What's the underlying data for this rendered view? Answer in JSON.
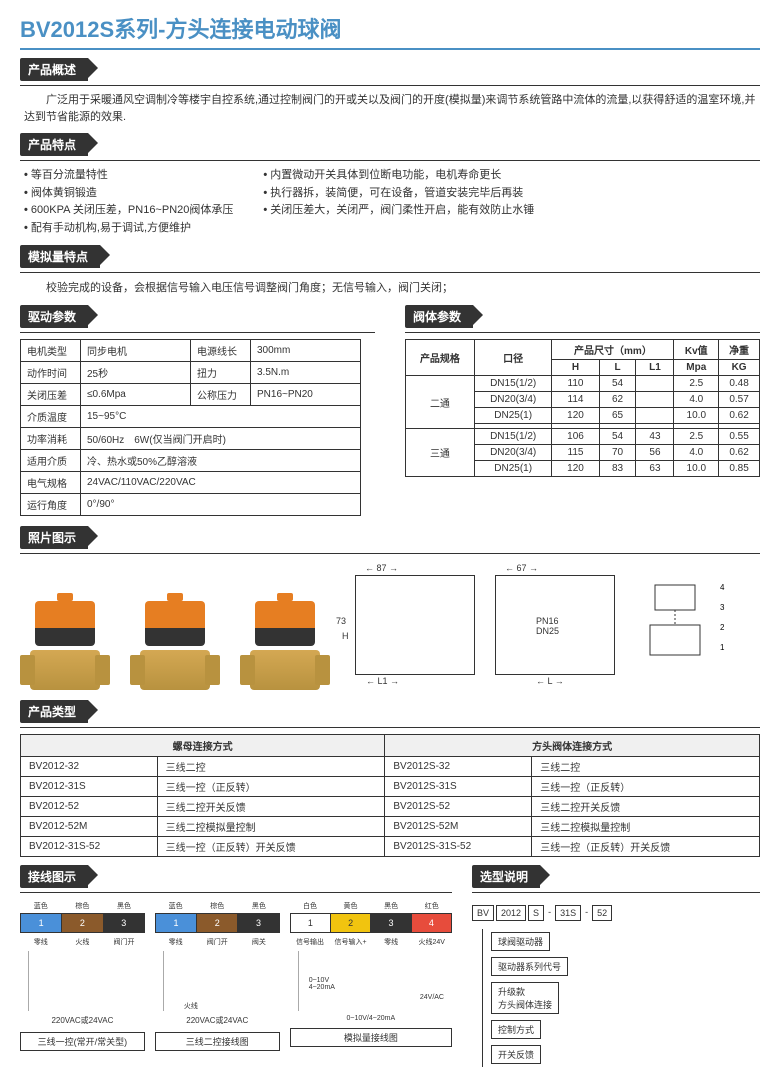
{
  "title": "BV2012S系列-方头连接电动球阀",
  "sections": {
    "overview_header": "产品概述",
    "overview_text": "广泛用于采暖通风空调制冷等楼宇自控系统,通过控制阀门的开或关以及阀门的开度(模拟量)来调节系统管路中流体的流量,以获得舒适的温室环境,并达到节省能源的效果.",
    "features_header": "产品特点",
    "features_left": [
      "等百分流量特性",
      "阀体黄铜锻造",
      "600KPA 关闭压差，PN16~PN20阀体承压",
      "配有手动机构,易于调试,方便维护"
    ],
    "features_right": [
      "内置微动开关具体到位断电功能，电机寿命更长",
      "执行器拆，装简便，可在设备，管道安装完毕后再装",
      "关闭压差大，关闭严，阀门柔性开启，能有效防止水锤"
    ],
    "analog_header": "模拟量特点",
    "analog_text": "校验完成的设备，会根据信号输入电压信号调整阀门角度；无信号输入，阀门关闭；",
    "drive_header": "驱动参数",
    "body_header": "阀体参数",
    "photo_header": "照片图示",
    "model_header": "产品类型",
    "wiring_header": "接线图示",
    "selection_header": "选型说明"
  },
  "drive_params": [
    [
      "电机类型",
      "同步电机",
      "电源线长",
      "300mm"
    ],
    [
      "动作时间",
      "25秒",
      "扭力",
      "3.5N.m"
    ],
    [
      "关闭压差",
      "≤0.6Mpa",
      "公称压力",
      "PN16~PN20"
    ],
    [
      "介质温度",
      "15~95°C",
      "",
      ""
    ],
    [
      "功率消耗",
      "50/60Hz　6W(仅当阀门开启时)",
      "",
      ""
    ],
    [
      "适用介质",
      "冷、热水或50%乙醇溶液",
      "",
      ""
    ],
    [
      "电气规格",
      "24VAC/110VAC/220VAC",
      "",
      ""
    ],
    [
      "运行角度",
      "0°/90°",
      "",
      ""
    ]
  ],
  "body_params": {
    "headers": {
      "spec": "产品规格",
      "bore": "口径",
      "dim": "产品尺寸（mm）",
      "h": "H",
      "l": "L",
      "l1": "L1",
      "kv": "Kv值",
      "kv_unit": "Mpa",
      "weight": "净重",
      "weight_unit": "KG"
    },
    "two_way": "二通",
    "three_way": "三通",
    "rows_two": [
      [
        "DN15(1/2)",
        "110",
        "54",
        "",
        "2.5",
        "0.48"
      ],
      [
        "DN20(3/4)",
        "114",
        "62",
        "",
        "4.0",
        "0.57"
      ],
      [
        "DN25(1)",
        "120",
        "65",
        "",
        "10.0",
        "0.62"
      ],
      [
        "",
        "",
        "",
        "",
        "",
        ""
      ]
    ],
    "rows_three": [
      [
        "DN15(1/2)",
        "106",
        "54",
        "43",
        "2.5",
        "0.55"
      ],
      [
        "DN20(3/4)",
        "115",
        "70",
        "56",
        "4.0",
        "0.62"
      ],
      [
        "DN25(1)",
        "120",
        "83",
        "63",
        "10.0",
        "0.85"
      ]
    ]
  },
  "tech_labels": {
    "w1": "87",
    "w2": "67",
    "h": "73",
    "H": "H",
    "L": "L",
    "L1": "L1",
    "pn16": "PN16",
    "dn25": "DN25"
  },
  "model_table": {
    "col1_header": "螺母连接方式",
    "col2_header": "方头阀体连接方式",
    "rows": [
      [
        "BV2012-32",
        "三线二控",
        "BV2012S-32",
        "三线二控"
      ],
      [
        "BV2012-31S",
        "三线一控（正反转）",
        "BV2012S-31S",
        "三线一控（正反转）"
      ],
      [
        "BV2012-52",
        "三线二控开关反馈",
        "BV2012S-52",
        "三线二控开关反馈"
      ],
      [
        "BV2012-52M",
        "三线二控模拟量控制",
        "BV2012S-52M",
        "三线二控模拟量控制"
      ],
      [
        "BV2012-31S-52",
        "三线一控（正反转）开关反馈",
        "BV2012S-31S-52",
        "三线一控（正反转）开关反馈"
      ]
    ]
  },
  "wiring": {
    "colors": {
      "blue": "蓝色",
      "brown": "棕色",
      "black": "黑色",
      "white": "白色",
      "yellow": "黄色",
      "red": "红色"
    },
    "terms": {
      "zero": "零线",
      "fire": "火线",
      "valve_open": "阀门开",
      "valve_close": "阀关",
      "sig_out": "信号输出",
      "sig_in": "信号输入+",
      "fire24": "火线24V"
    },
    "voltage1": "220VAC或24VAC",
    "voltage2": "220VAC或24VAC",
    "voltage3": "24V/AC",
    "analog1": "0~10V\n4~20mA",
    "analog2": "0~10V/4~20mA",
    "titles": [
      "三线一控(常开/常关型)",
      "三线二控接线图",
      "模拟量接线图"
    ]
  },
  "selection": {
    "boxes": [
      "BV",
      "2012",
      "S",
      "-",
      "31S",
      "-",
      "52"
    ],
    "labels": [
      "球阀驱动器",
      "驱动器系列代号",
      "升级款\n方头阀体连接",
      "控制方式",
      "开关反馈"
    ]
  },
  "colors": {
    "brand_blue": "#4a90c4",
    "header_bg": "#333333",
    "actuator_orange": "#e67e22",
    "brass": "#d4a853"
  }
}
